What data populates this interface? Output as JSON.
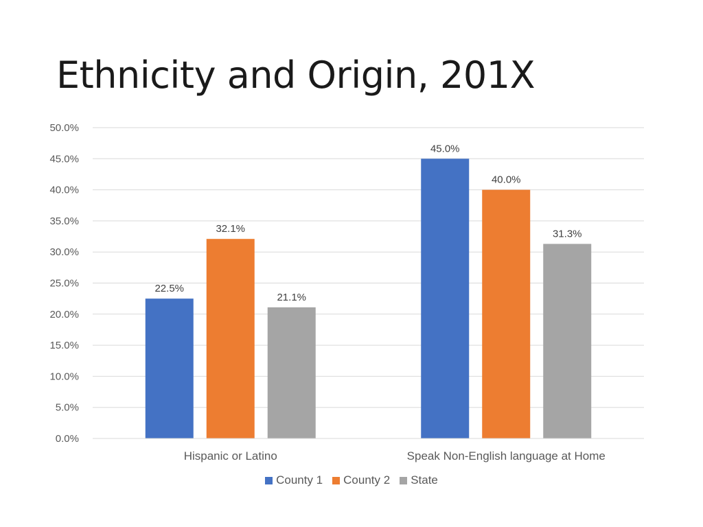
{
  "slide": {
    "title": "Ethnicity and Origin, 201X"
  },
  "chart_data": {
    "type": "bar",
    "categories": [
      "Hispanic or Latino",
      "Speak Non-English language at Home"
    ],
    "series": [
      {
        "name": "County 1",
        "values": [
          22.5,
          45.0
        ],
        "labels": [
          "22.5%",
          "45.0%"
        ],
        "color": "#4472C4"
      },
      {
        "name": "County 2",
        "values": [
          32.1,
          40.0
        ],
        "labels": [
          "32.1%",
          "40.0%"
        ],
        "color": "#ED7D31"
      },
      {
        "name": "State",
        "values": [
          21.1,
          31.3
        ],
        "labels": [
          "21.1%",
          "31.3%"
        ],
        "color": "#A5A5A5"
      }
    ],
    "ylim": [
      0,
      50
    ],
    "yticks": [
      0,
      5,
      10,
      15,
      20,
      25,
      30,
      35,
      40,
      45,
      50
    ],
    "ytick_labels": [
      "0.0%",
      "5.0%",
      "10.0%",
      "15.0%",
      "20.0%",
      "25.0%",
      "30.0%",
      "35.0%",
      "40.0%",
      "45.0%",
      "50.0%"
    ],
    "grid": true,
    "legend_position": "bottom"
  }
}
